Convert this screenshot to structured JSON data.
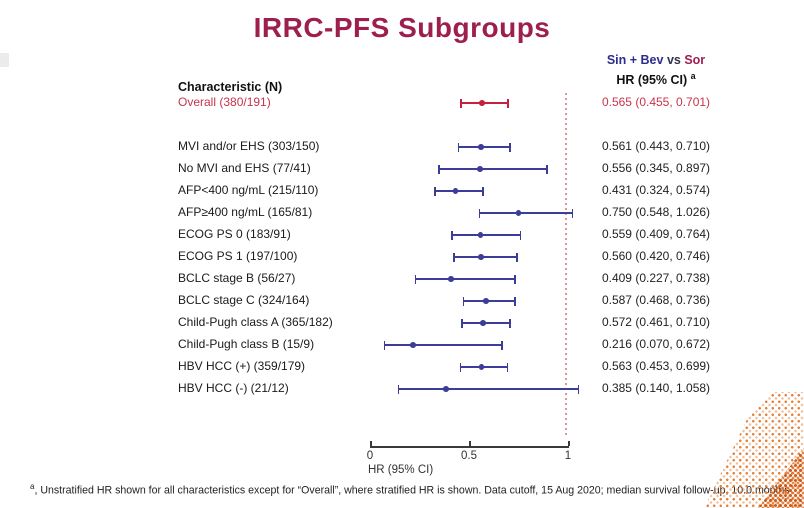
{
  "title": "IRRC-PFS Subgroups",
  "colors": {
    "title_maroon": "#9C1F4E",
    "arm1_navy": "#2D2D8F",
    "arm2_maroon": "#9C1F4E",
    "highlight_red": "#C5203E",
    "subgroup_navy": "#3C3C99",
    "refline_pink": "#D9969B",
    "deco_orange": "#E47A2E"
  },
  "header": {
    "characteristic_col": "Characteristic (N)",
    "comparison": {
      "arm1": "Sin + Bev",
      "vs": "vs",
      "arm2": "Sor"
    },
    "hr_col": "HR (95% CI)",
    "hr_col_sup": "a"
  },
  "chart_data": {
    "type": "forest",
    "xlabel": "HR (95% CI)",
    "xlim": [
      0,
      1.1
    ],
    "x_ticks": [
      0,
      0.5,
      1
    ],
    "x_tick_labels": [
      "0",
      "0.5",
      "1"
    ],
    "reference_line": 1,
    "grid": false,
    "rows": [
      {
        "label": "Overall (380/191)",
        "hr": 0.565,
        "lo": 0.455,
        "hi": 0.701,
        "display": "0.565 (0.455, 0.701)",
        "highlight": true
      },
      {
        "label": "MVI and/or EHS (303/150)",
        "hr": 0.561,
        "lo": 0.443,
        "hi": 0.71,
        "display": "0.561 (0.443, 0.710)",
        "highlight": false
      },
      {
        "label": "No MVI and EHS (77/41)",
        "hr": 0.556,
        "lo": 0.345,
        "hi": 0.897,
        "display": "0.556 (0.345, 0.897)",
        "highlight": false
      },
      {
        "label": "AFP<400 ng/mL (215/110)",
        "hr": 0.431,
        "lo": 0.324,
        "hi": 0.574,
        "display": "0.431 (0.324, 0.574)",
        "highlight": false
      },
      {
        "label": "AFP≥400 ng/mL (165/81)",
        "hr": 0.75,
        "lo": 0.548,
        "hi": 1.026,
        "display": "0.750 (0.548, 1.026)",
        "highlight": false
      },
      {
        "label": "ECOG PS 0 (183/91)",
        "hr": 0.559,
        "lo": 0.409,
        "hi": 0.764,
        "display": "0.559 (0.409, 0.764)",
        "highlight": false
      },
      {
        "label": "ECOG PS 1 (197/100)",
        "hr": 0.56,
        "lo": 0.42,
        "hi": 0.746,
        "display": "0.560 (0.420, 0.746)",
        "highlight": false
      },
      {
        "label": "BCLC stage B (56/27)",
        "hr": 0.409,
        "lo": 0.227,
        "hi": 0.738,
        "display": "0.409 (0.227, 0.738)",
        "highlight": false
      },
      {
        "label": "BCLC stage C (324/164)",
        "hr": 0.587,
        "lo": 0.468,
        "hi": 0.736,
        "display": "0.587 (0.468, 0.736)",
        "highlight": false
      },
      {
        "label": "Child-Pugh class A (365/182)",
        "hr": 0.572,
        "lo": 0.461,
        "hi": 0.71,
        "display": "0.572 (0.461, 0.710)",
        "highlight": false
      },
      {
        "label": "Child-Pugh class B (15/9)",
        "hr": 0.216,
        "lo": 0.07,
        "hi": 0.672,
        "display": "0.216 (0.070, 0.672)",
        "highlight": false
      },
      {
        "label": "HBV HCC (+) (359/179)",
        "hr": 0.563,
        "lo": 0.453,
        "hi": 0.699,
        "display": "0.563 (0.453, 0.699)",
        "highlight": false
      },
      {
        "label": "HBV HCC (-) (21/12)",
        "hr": 0.385,
        "lo": 0.14,
        "hi": 1.058,
        "display": "0.385 (0.140, 1.058)",
        "highlight": false
      }
    ]
  },
  "footnote": {
    "sup": "a",
    "text": ", Unstratified HR shown for all characteristics except for “Overall”, where stratified HR is shown. Data cutoff, 15 Aug 2020; median survival follow-up, 10.0 months"
  }
}
